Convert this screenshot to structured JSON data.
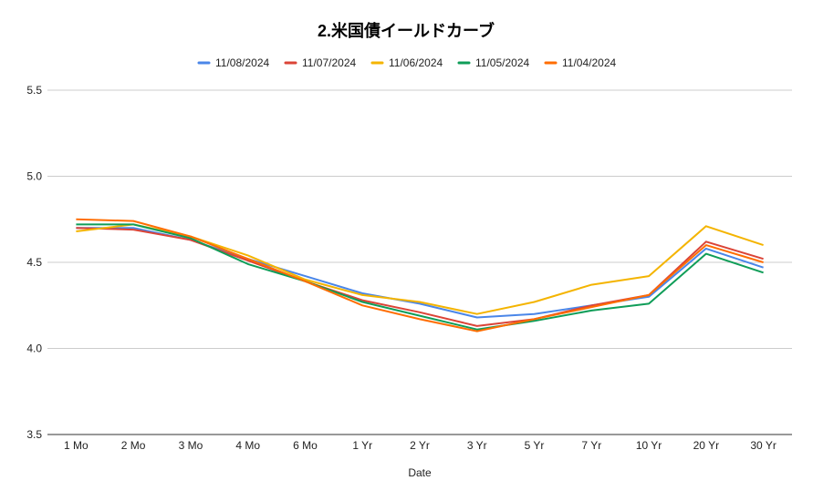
{
  "chart_data": {
    "type": "line",
    "title": "2.米国債イールドカーブ",
    "xlabel": "Date",
    "ylabel": "",
    "categories": [
      "1 Mo",
      "2 Mo",
      "3 Mo",
      "4 Mo",
      "6 Mo",
      "1 Yr",
      "2 Yr",
      "3 Yr",
      "5 Yr",
      "7 Yr",
      "10 Yr",
      "20 Yr",
      "30 Yr"
    ],
    "ylim": [
      3.5,
      5.5
    ],
    "yticks": [
      "3.5",
      "4.0",
      "4.5",
      "5.0",
      "5.5"
    ],
    "grid": true,
    "legend": "top",
    "series": [
      {
        "name": "11/08/2024",
        "color": "#4a86e8",
        "values": [
          4.7,
          4.7,
          4.63,
          4.52,
          4.42,
          4.32,
          4.26,
          4.18,
          4.2,
          4.25,
          4.3,
          4.58,
          4.47
        ]
      },
      {
        "name": "11/07/2024",
        "color": "#db4437",
        "values": [
          4.7,
          4.69,
          4.63,
          4.51,
          4.39,
          4.28,
          4.21,
          4.13,
          4.17,
          4.25,
          4.31,
          4.62,
          4.52
        ]
      },
      {
        "name": "11/06/2024",
        "color": "#f4b400",
        "values": [
          4.68,
          4.72,
          4.65,
          4.54,
          4.4,
          4.31,
          4.27,
          4.2,
          4.27,
          4.37,
          4.42,
          4.71,
          4.6
        ]
      },
      {
        "name": "11/05/2024",
        "color": "#0f9d58",
        "values": [
          4.72,
          4.72,
          4.64,
          4.49,
          4.39,
          4.27,
          4.19,
          4.11,
          4.16,
          4.22,
          4.26,
          4.55,
          4.44
        ]
      },
      {
        "name": "11/04/2024",
        "color": "#ff6d01",
        "values": [
          4.75,
          4.74,
          4.65,
          4.52,
          4.39,
          4.25,
          4.17,
          4.1,
          4.17,
          4.24,
          4.31,
          4.6,
          4.5
        ]
      }
    ]
  }
}
